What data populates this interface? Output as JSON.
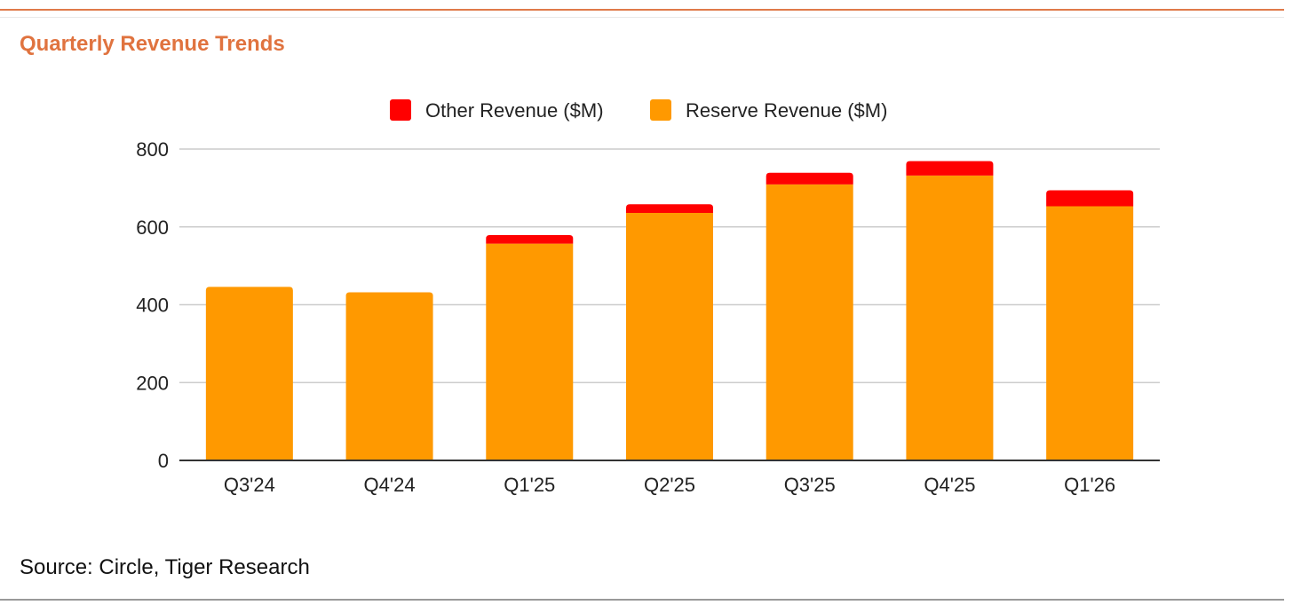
{
  "header": {
    "title": "Quarterly Revenue Trends"
  },
  "footer": {
    "source": "Source: Circle, Tiger Research"
  },
  "colors": {
    "accent": "#e0733f",
    "other": "#ff0000",
    "reserve": "#ff9900",
    "grid": "#cccccc",
    "axis": "#333333"
  },
  "chart_data": {
    "type": "bar",
    "stacked": true,
    "categories": [
      "Q3'24",
      "Q4'24",
      "Q1'25",
      "Q2'25",
      "Q3'25",
      "Q4'25",
      "Q1'26"
    ],
    "series": [
      {
        "name": "Reserve Revenue ($M)",
        "color": "#ff9900",
        "values": [
          446,
          432,
          557,
          636,
          709,
          732,
          653
        ]
      },
      {
        "name": "Other Revenue ($M)",
        "color": "#ff0000",
        "values": [
          0,
          0,
          22,
          22,
          30,
          37,
          41
        ]
      }
    ],
    "legend_order": [
      "Other Revenue ($M)",
      "Reserve Revenue ($M)"
    ],
    "ylim": [
      0,
      800
    ],
    "yticks": [
      0,
      200,
      400,
      600,
      800
    ],
    "grid": true,
    "legend_position": "top",
    "xlabel": "",
    "ylabel": ""
  }
}
